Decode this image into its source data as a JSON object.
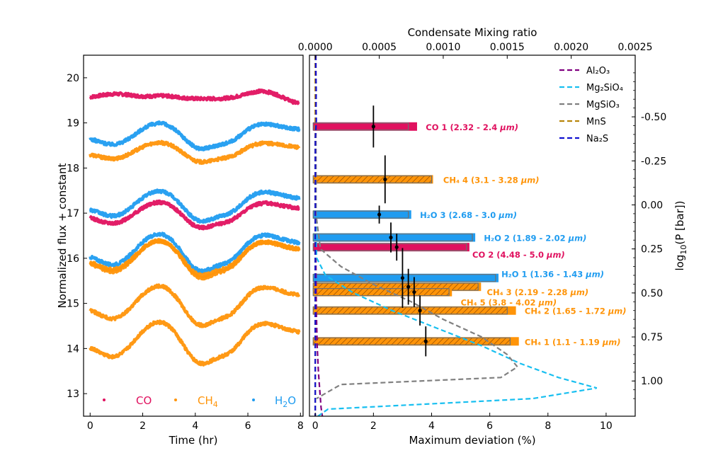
{
  "chart_data": [
    {
      "type": "scatter",
      "title": "",
      "xlabel": "Time (hr)",
      "ylabel": "Normalized flux + constant",
      "xlim": [
        -0.25,
        8.1
      ],
      "ylim": [
        12.5,
        20.5
      ],
      "x_ticks": [
        "0",
        "2",
        "4",
        "6",
        "8"
      ],
      "y_ticks": [
        "13",
        "14",
        "15",
        "16",
        "17",
        "18",
        "19",
        "20"
      ],
      "legend": [
        {
          "label": "CO",
          "sub": "",
          "color": "#e0115f"
        },
        {
          "label": "CH",
          "sub": "4",
          "color": "#ff9408"
        },
        {
          "label": "H",
          "sub": "2",
          "tail": "O",
          "color": "#1f9cf0"
        }
      ],
      "series": [
        {
          "name": "CO 1",
          "color": "#e0115f",
          "offset": 19.55,
          "amp": 0.3,
          "shape": "co1"
        },
        {
          "name": "CH4 4",
          "color": "#ff9408",
          "offset": 18.15,
          "amp": 0.42,
          "shape": "wave"
        },
        {
          "name": "H2O 3",
          "color": "#1f9cf0",
          "offset": 18.45,
          "amp": 0.55,
          "shape": "wave"
        },
        {
          "name": "H2O 2",
          "color": "#1f9cf0",
          "offset": 16.85,
          "amp": 0.65,
          "shape": "wave"
        },
        {
          "name": "CO 2",
          "color": "#e0115f",
          "offset": 16.7,
          "amp": 0.55,
          "shape": "wave"
        },
        {
          "name": "H2O 1",
          "color": "#1f9cf0",
          "offset": 15.75,
          "amp": 0.8,
          "shape": "wave"
        },
        {
          "name": "CH4 3",
          "color": "#ff9408",
          "offset": 15.6,
          "amp": 0.8,
          "shape": "wave"
        },
        {
          "name": "CH4 5",
          "color": "#ff9408",
          "offset": 15.65,
          "amp": 0.75,
          "shape": "wave"
        },
        {
          "name": "CH4 2",
          "color": "#ff9408",
          "offset": 14.55,
          "amp": 0.85,
          "shape": "wave"
        },
        {
          "name": "CH4 1",
          "color": "#ff9408",
          "offset": 13.7,
          "amp": 0.9,
          "shape": "wave"
        }
      ]
    },
    {
      "type": "bar",
      "title": "",
      "xlabel": "Maximum deviation (%)",
      "xlim": [
        -0.2,
        11
      ],
      "x_ticks": [
        "0",
        "2",
        "4",
        "6",
        "8",
        "10"
      ],
      "top_xlabel": "Condensate Mixing ratio",
      "top_xlim": [
        -4.55e-05,
        0.0025
      ],
      "top_x_ticks": [
        "0.0000",
        "0.0005",
        "0.0010",
        "0.0015",
        "0.0020",
        "0.0025"
      ],
      "ylabel_right": "log",
      "ylabel_right_sub": "10",
      "ylabel_right_tail": "(P [bar])",
      "ylim": [
        -0.85,
        1.2
      ],
      "y_ticks": [
        "-0.50",
        "-0.25",
        "0.00",
        "0.25",
        "0.50",
        "0.75",
        "1.00"
      ],
      "bars": [
        {
          "label": "CO 1 (2.32 - 2.4 ",
          "unit": "μm)",
          "color": "#e0115f",
          "hatch": false,
          "bar_right": 3.5,
          "model_right": 3.2,
          "y": -0.445,
          "point": 2.0,
          "err": 0.7,
          "label_x": 3.8,
          "label_dy": 0
        },
        {
          "label": "CH₄ 4 (3.1 - 3.28 ",
          "unit": "μm)",
          "color": "#ff9408",
          "hatch": true,
          "bar_right": 4.05,
          "model_right": 4.0,
          "y": -0.145,
          "point": 2.4,
          "err": 0.8,
          "label_x": 4.4,
          "label_dy": 0
        },
        {
          "label": "H₂O 3 (2.68 - 3.0 ",
          "unit": "μm)",
          "color": "#1f9cf0",
          "hatch": false,
          "bar_right": 3.3,
          "model_right": 3.2,
          "y": 0.055,
          "point": 2.2,
          "err": 0.3,
          "label_x": 3.6,
          "label_dy": 0
        },
        {
          "label": "H₂O 2 (1.89 - 2.02 ",
          "unit": "μm)",
          "color": "#1f9cf0",
          "hatch": false,
          "bar_right": 5.5,
          "model_right": 5.4,
          "y": 0.185,
          "point": 2.6,
          "err": 0.5,
          "label_x": 5.8,
          "label_dy": 0
        },
        {
          "label": "CO 2 (4.48 - 5.0 ",
          "unit": "μm)",
          "color": "#e0115f",
          "hatch": false,
          "bar_right": 5.3,
          "model_right": 5.2,
          "y": 0.24,
          "point": 2.8,
          "err": 0.45,
          "label_x": 5.4,
          "label_dy": 10
        },
        {
          "label": "H₂O 1 (1.36 - 1.43 ",
          "unit": "μm)",
          "color": "#1f9cf0",
          "hatch": false,
          "bar_right": 6.3,
          "model_right": 6.2,
          "y": 0.415,
          "point": 3.0,
          "err": 1.0,
          "label_x": 6.4,
          "label_dy": -6
        },
        {
          "label": "CH₄ 3 (2.19 - 2.28 ",
          "unit": "μm)",
          "color": "#ff9408",
          "hatch": true,
          "bar_right": 5.7,
          "model_right": 5.6,
          "y": 0.465,
          "point": 3.2,
          "err": 0.6,
          "label_x": 5.9,
          "label_dy": 7
        },
        {
          "label": "CH₄ 5 (3.8 - 4.02 ",
          "unit": "μm)",
          "color": "#ff9408",
          "hatch": true,
          "bar_right": 4.7,
          "model_right": 4.6,
          "y": 0.495,
          "point": 3.4,
          "err": 0.5,
          "label_x": 5.0,
          "label_dy": 14
        },
        {
          "label": "CH₄ 2 (1.65 - 1.72 ",
          "unit": "μm)",
          "color": "#ff9408",
          "hatch": true,
          "bar_right": 6.9,
          "model_right": 6.6,
          "y": 0.6,
          "point": 3.6,
          "err": 0.5,
          "label_x": 7.2,
          "label_dy": 0
        },
        {
          "label": "CH₄ 1 (1.1 - 1.19 ",
          "unit": "μm)",
          "color": "#ff9408",
          "hatch": true,
          "bar_right": 7.0,
          "model_right": 6.7,
          "y": 0.775,
          "point": 3.8,
          "err": 0.5,
          "label_x": 7.2,
          "label_dy": 0
        }
      ],
      "condensates": [
        {
          "name": "Al₂O₃",
          "color": "#800080",
          "points": [
            [
              5e-06,
              -0.85
            ],
            [
              5e-06,
              0.3
            ],
            [
              8e-06,
              0.6
            ],
            [
              1.5e-05,
              0.8
            ],
            [
              2.5e-05,
              0.95
            ],
            [
              3.5e-05,
              1.05
            ],
            [
              4.5e-05,
              1.15
            ],
            [
              5.5e-05,
              1.2
            ]
          ]
        },
        {
          "name": "Mg₂SiO₄",
          "color": "#18bff0",
          "points": [
            [
              3e-06,
              -0.85
            ],
            [
              5e-06,
              0.1
            ],
            [
              1e-05,
              0.3
            ],
            [
              8e-05,
              0.4
            ],
            [
              0.0003,
              0.5
            ],
            [
              0.0006,
              0.6
            ],
            [
              0.00095,
              0.7
            ],
            [
              0.0013,
              0.8
            ],
            [
              0.0016,
              0.9
            ],
            [
              0.0019,
              0.98
            ],
            [
              0.0022,
              1.04
            ],
            [
              0.0017,
              1.1
            ],
            [
              0.0001,
              1.16
            ],
            [
              2e-05,
              1.2
            ]
          ]
        },
        {
          "name": "MgSiO₃",
          "color": "#808080",
          "points": [
            [
              3e-06,
              -0.85
            ],
            [
              5e-06,
              0.05
            ],
            [
              4e-05,
              0.25
            ],
            [
              0.0002,
              0.35
            ],
            [
              0.00045,
              0.45
            ],
            [
              0.00075,
              0.55
            ],
            [
              0.001,
              0.65
            ],
            [
              0.0013,
              0.75
            ],
            [
              0.0015,
              0.85
            ],
            [
              0.00158,
              0.92
            ],
            [
              0.00145,
              0.98
            ],
            [
              0.0002,
              1.02
            ],
            [
              8e-05,
              1.07
            ],
            [
              1e-05,
              1.1
            ]
          ]
        },
        {
          "name": "MnS",
          "color": "#b8860b",
          "points": [
            [
              0.0,
              -0.85
            ],
            [
              0.0,
              1.2
            ]
          ]
        },
        {
          "name": "Na₂S",
          "color": "#1010d0",
          "points": [
            [
              2.5e-06,
              -0.85
            ],
            [
              4.5e-06,
              -0.75
            ],
            [
              7e-06,
              -0.65
            ],
            [
              5.5e-06,
              -0.55
            ],
            [
              8e-06,
              -0.48
            ],
            [
              3e-06,
              -0.42
            ],
            [
              5e-07,
              -0.38
            ],
            [
              0.0,
              1.2
            ]
          ]
        }
      ]
    }
  ]
}
